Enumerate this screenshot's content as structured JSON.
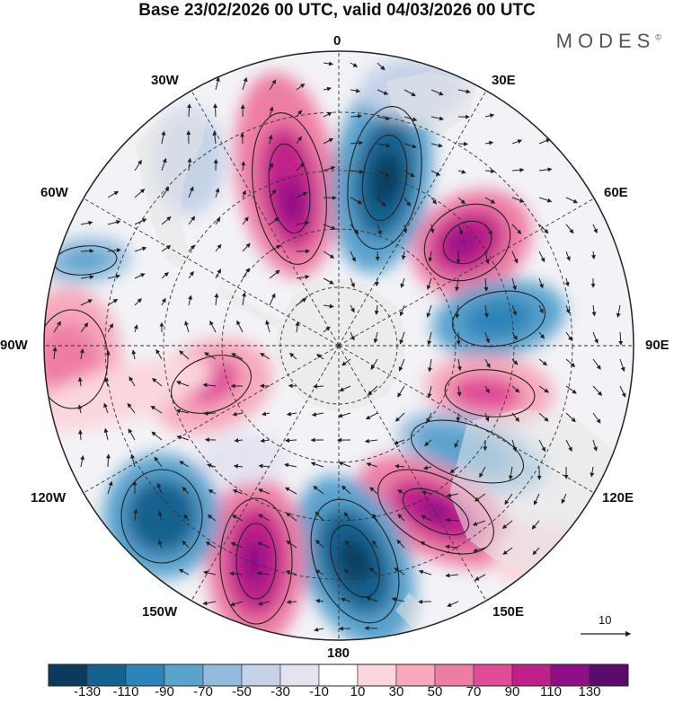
{
  "title": "Base 23/02/2026 00 UTC, valid 04/03/2026 00 UTC",
  "brand": "MODES",
  "brand_mark": "©",
  "longitude_labels": {
    "n0": "0",
    "n30e": "30E",
    "n60e": "60E",
    "e90": "90E",
    "n120e": "120E",
    "n150e": "150E",
    "s180": "180",
    "n150w": "150W",
    "n120w": "120W",
    "w90": "90W",
    "n60w": "60W",
    "n30w": "30W"
  },
  "vector_reference": {
    "label": "10"
  },
  "colorbar": {
    "ticks": [
      "-130",
      "-110",
      "-90",
      "-70",
      "-50",
      "-30",
      "-10",
      "10",
      "30",
      "50",
      "70",
      "90",
      "110",
      "130"
    ],
    "colors": [
      "#0b3b5c",
      "#13628f",
      "#2d84b8",
      "#5aa3cd",
      "#93bcdc",
      "#c5d2e8",
      "#e4e4f1",
      "#ffffff",
      "#fbd6dc",
      "#f6a9bb",
      "#ee7da4",
      "#e04c97",
      "#c1208a",
      "#8e0f86",
      "#5a0c6c"
    ]
  },
  "colors": {
    "land": "#e6e6e6",
    "frame": "#222222"
  }
}
